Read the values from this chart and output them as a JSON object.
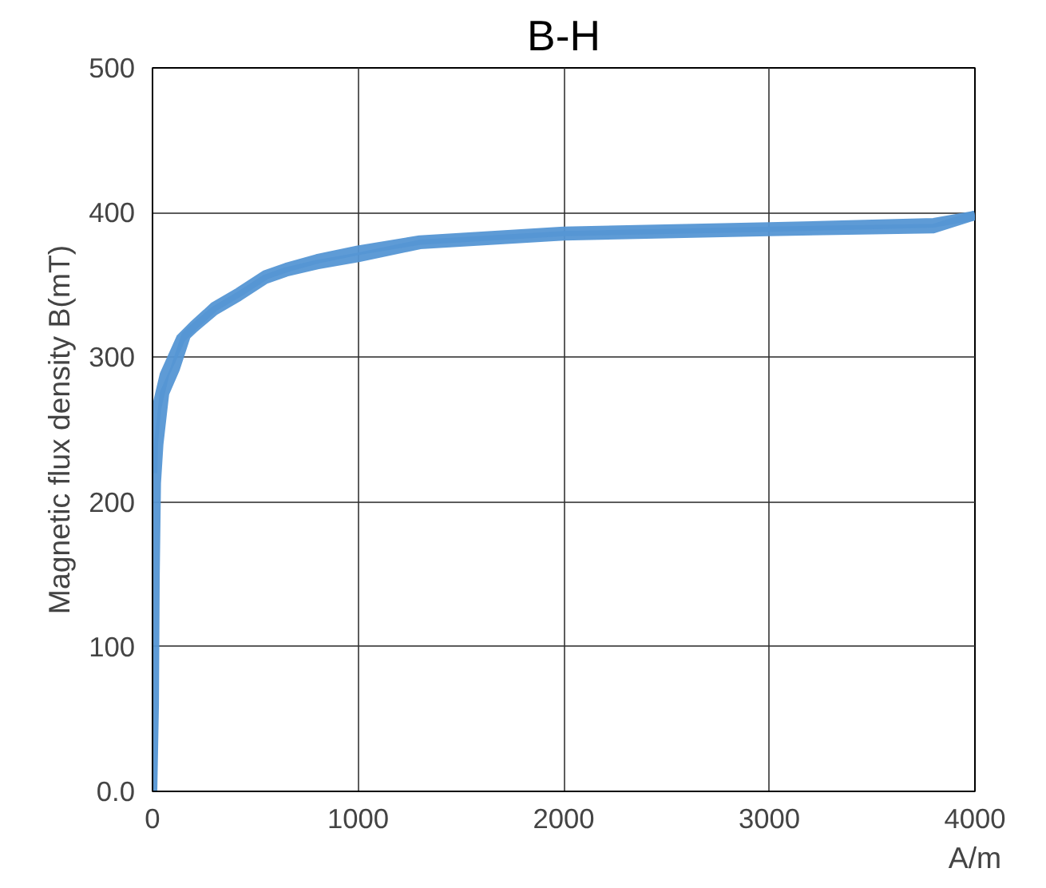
{
  "chart_data": {
    "type": "line",
    "title": "B-H",
    "xlabel": "A/m",
    "ylabel": "Magnetic flux density B(mT)",
    "series": [
      {
        "color": "#5596d4",
        "x": [
          0,
          8,
          12,
          18,
          30,
          58,
          110,
          163,
          200,
          300,
          420,
          550,
          650,
          800,
          1000,
          1300,
          2000,
          3000,
          3800,
          4000
        ],
        "values": [
          0,
          60,
          150,
          213,
          240,
          275,
          292,
          315,
          320,
          332,
          342,
          354,
          359,
          364,
          369,
          378,
          384,
          387,
          389,
          398
        ]
      },
      {
        "color": "#5596d4",
        "x": [
          4000,
          3800,
          3000,
          2000,
          1300,
          1000,
          800,
          650,
          550,
          420,
          300,
          200,
          137,
          58,
          18,
          3,
          0
        ],
        "values": [
          398,
          393,
          390,
          387,
          381,
          374,
          368,
          362,
          357,
          345,
          335,
          322,
          313,
          288,
          264,
          240,
          220
        ]
      }
    ],
    "xlim": [
      0,
      4000
    ],
    "xticks": [
      0,
      1000,
      2000,
      3000,
      4000
    ],
    "ylim": [
      0,
      500
    ],
    "yticks": [
      {
        "value": 0,
        "label": "0.0"
      },
      100,
      200,
      300,
      400,
      500
    ],
    "grid": true,
    "marker": "none",
    "line_style": "solid"
  }
}
